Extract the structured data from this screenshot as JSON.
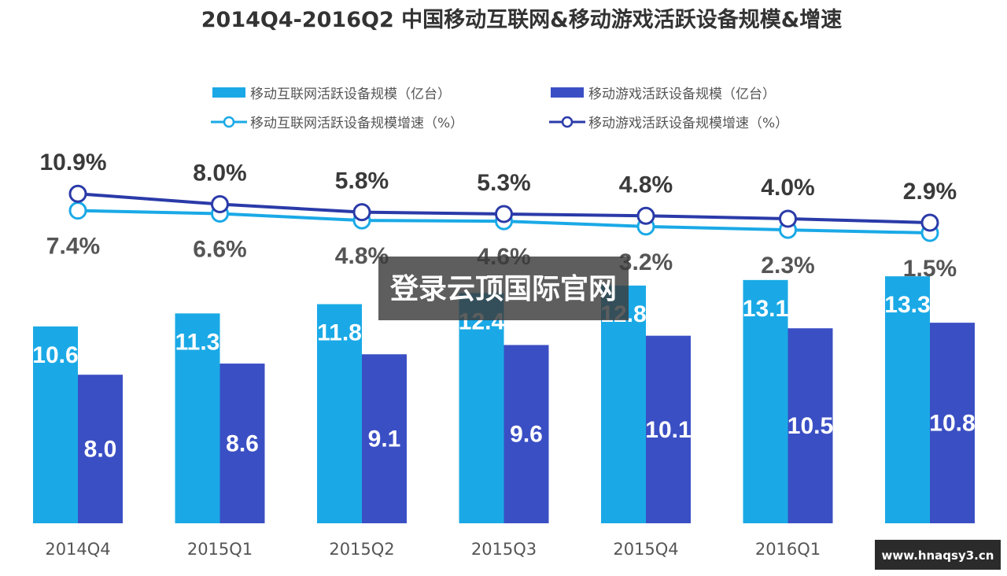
{
  "chart_data": {
    "type": "bar",
    "title": "2014Q4-2016Q2 中国移动互联网&移动游戏活跃设备规模&增速",
    "categories": [
      "2014Q4",
      "2015Q1",
      "2015Q2",
      "2015Q3",
      "2015Q4",
      "2016Q1",
      "2016Q2"
    ],
    "series": [
      {
        "name": "移动互联网活跃设备规模（亿台）",
        "kind": "bar",
        "color": "#1aa9e6",
        "values": [
          10.6,
          11.3,
          11.8,
          12.4,
          12.8,
          13.1,
          13.3
        ],
        "labels": [
          "10.6",
          "11.3",
          "11.8",
          "12.4",
          "12.8",
          "13.1",
          "13.3"
        ]
      },
      {
        "name": "移动游戏活跃设备规模（亿台）",
        "kind": "bar",
        "color": "#3b4fc4",
        "values": [
          8.0,
          8.6,
          9.1,
          9.6,
          10.1,
          10.5,
          10.8
        ],
        "labels": [
          "8.0",
          "8.6",
          "9.1",
          "9.6",
          "10.1",
          "10.5",
          "10.8"
        ]
      },
      {
        "name": "移动互联网活跃设备规模增速（%）",
        "kind": "line",
        "color": "#1aa9e6",
        "values": [
          7.4,
          6.6,
          4.8,
          4.6,
          3.2,
          2.3,
          1.5
        ],
        "labels": [
          "7.4%",
          "6.6%",
          "4.8%",
          "4.6%",
          "3.2%",
          "2.3%",
          "1.5%"
        ]
      },
      {
        "name": "移动游戏活跃设备规模增速（%）",
        "kind": "line",
        "color": "#2a3aa8",
        "values": [
          10.9,
          8.0,
          5.8,
          5.3,
          4.8,
          4.0,
          2.9
        ],
        "labels": [
          "10.9%",
          "8.0%",
          "5.8%",
          "5.3%",
          "4.8%",
          "4.0%",
          "2.9%"
        ]
      }
    ],
    "xlabel": "",
    "ylabel": "",
    "ylim": [
      0,
      14
    ],
    "grid": false,
    "legend_position": "top"
  },
  "watermark": {
    "text": "登录云顶国际官网"
  },
  "site_badge": {
    "text": "www.hnaqsy3.cn"
  }
}
